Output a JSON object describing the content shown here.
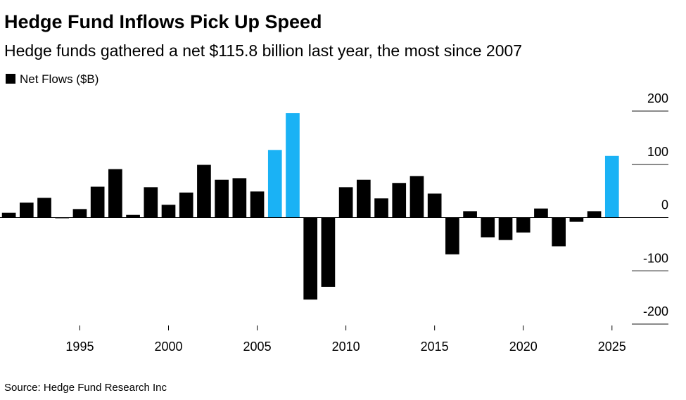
{
  "chart_data": {
    "type": "bar",
    "title": "Hedge Fund Inflows Pick Up Speed",
    "subtitle": "Hedge funds gathered a net $115.8 billion last year, the most since 2007",
    "source": "Source: Hedge Fund Research Inc",
    "x": [
      1991,
      1992,
      1993,
      1994,
      1995,
      1996,
      1997,
      1998,
      1999,
      2000,
      2001,
      2002,
      2003,
      2004,
      2005,
      2006,
      2007,
      2008,
      2009,
      2010,
      2011,
      2012,
      2013,
      2014,
      2015,
      2016,
      2017,
      2018,
      2019,
      2020,
      2021,
      2022,
      2023,
      2024,
      2025
    ],
    "series": [
      {
        "name": "Net Flows ($B)",
        "color": "#000000",
        "values": [
          9,
          28,
          37,
          -1,
          16,
          58,
          91,
          5,
          57,
          24,
          47,
          99,
          71,
          74,
          49,
          127,
          196,
          -154,
          -130,
          57,
          71,
          36,
          65,
          78,
          45,
          -69,
          12,
          -37,
          -42,
          -28,
          17,
          -54,
          -8,
          12,
          115.8
        ],
        "colors": [
          "#000000",
          "#000000",
          "#000000",
          "#000000",
          "#000000",
          "#000000",
          "#000000",
          "#000000",
          "#000000",
          "#000000",
          "#000000",
          "#000000",
          "#000000",
          "#000000",
          "#000000",
          "#1ab2f5",
          "#1ab2f5",
          "#000000",
          "#000000",
          "#000000",
          "#000000",
          "#000000",
          "#000000",
          "#000000",
          "#000000",
          "#000000",
          "#000000",
          "#000000",
          "#000000",
          "#000000",
          "#000000",
          "#000000",
          "#000000",
          "#000000",
          "#1ab2f5"
        ]
      }
    ],
    "xlim": [
      1990.5,
      2026
    ],
    "xticks": [
      1995,
      2000,
      2005,
      2010,
      2015,
      2020,
      2025
    ],
    "ylim": [
      -200,
      200
    ],
    "yticks": [
      -200,
      -100,
      0,
      100,
      200
    ],
    "grid": true
  }
}
